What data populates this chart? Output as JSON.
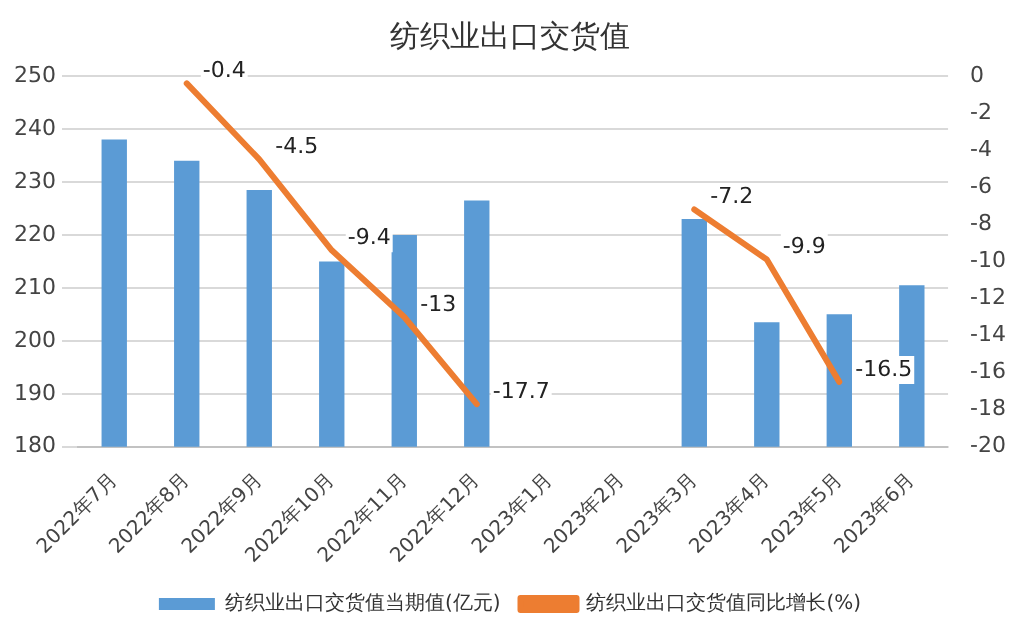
{
  "chart_data": {
    "type": "bar",
    "title": "纺织业出口交货值",
    "categories": [
      "2022年7月",
      "2022年8月",
      "2022年9月",
      "2022年10月",
      "2022年11月",
      "2022年12月",
      "2023年1月",
      "2023年2月",
      "2023年3月",
      "2023年4月",
      "2023年5月",
      "2023年6月"
    ],
    "series": [
      {
        "name": "纺织业出口交货值当期值(亿元)",
        "color": "#5b9bd5",
        "values": [
          238,
          234,
          228.5,
          215,
          220,
          226.5,
          null,
          null,
          223,
          203.5,
          205,
          210.5
        ]
      },
      {
        "name": "纺织业出口交货值同比增长(%)",
        "type": "line",
        "axis": "y2",
        "color": "#ed7d31",
        "values": [
          null,
          -0.4,
          -4.5,
          -9.4,
          -13,
          -17.7,
          null,
          null,
          -7.2,
          -9.9,
          -16.5,
          null
        ],
        "value_labels": [
          null,
          "-0.4",
          "-4.5",
          "-9.4",
          "-13",
          "-17.7",
          null,
          null,
          "-7.2",
          "-9.9",
          "-16.5",
          null
        ]
      }
    ],
    "ylim": [
      180,
      250
    ],
    "yticks": [
      180,
      190,
      200,
      210,
      220,
      230,
      240,
      250
    ],
    "y2lim": [
      -20,
      0
    ],
    "y2ticks": [
      -20,
      -18,
      -16,
      -14,
      -12,
      -10,
      -8,
      -6,
      -4,
      -2,
      0
    ],
    "grid": "y",
    "legend": "bottom"
  }
}
